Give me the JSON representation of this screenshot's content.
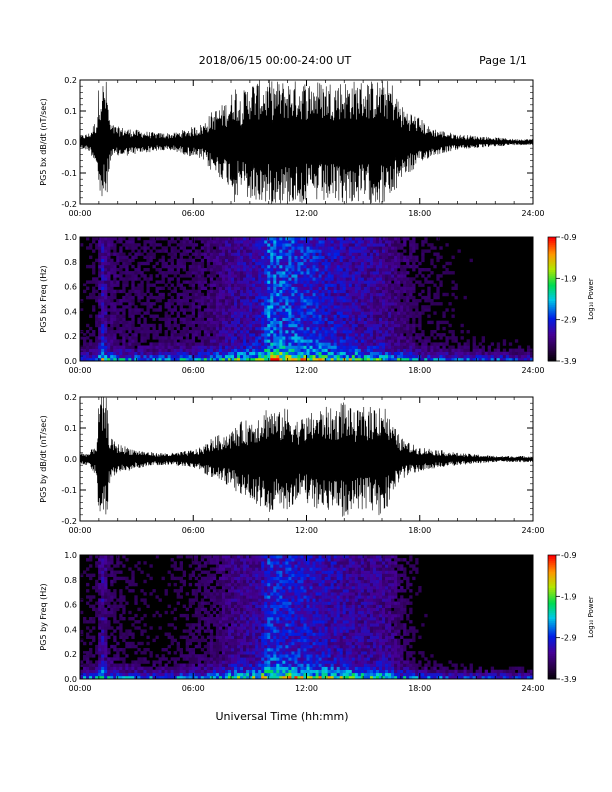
{
  "header": {
    "title": "2018/06/15  00:00-24:00 UT",
    "page": "Page 1/1"
  },
  "footer": {
    "xlabel": "Universal Time (hh:mm)"
  },
  "colorbar": {
    "ticks": [
      "-0.9",
      "-1.9",
      "-2.9",
      "-3.9"
    ],
    "label": "Log₁₀ Power"
  },
  "chart_data": [
    {
      "type": "line",
      "ylabel": "PG5 bx dB/dt (nT/sec)",
      "ylim": [
        -0.2,
        0.2
      ],
      "yticks": [
        "0.2",
        "0.1",
        "0.0",
        "-0.1",
        "-0.2"
      ],
      "xticks": [
        "00:00",
        "06:00",
        "12:00",
        "18:00",
        "24:00"
      ],
      "xlim_hours": [
        0,
        24
      ],
      "envelope": {
        "hours": [
          0,
          0.5,
          0.9,
          1.0,
          1.2,
          1.4,
          1.6,
          2.0,
          3.0,
          4.0,
          5.0,
          6.0,
          6.5,
          7.0,
          7.5,
          8.0,
          8.2,
          8.5,
          9.0,
          9.5,
          10.0,
          10.5,
          11.0,
          11.5,
          12.0,
          12.5,
          13.0,
          13.5,
          14.0,
          14.5,
          15.0,
          15.5,
          16.0,
          16.5,
          17.0,
          17.5,
          18.0,
          18.5,
          19.0,
          20.0,
          21.0,
          22.0,
          23.0,
          24.0
        ],
        "amplitude": [
          0.02,
          0.03,
          0.08,
          0.2,
          0.2,
          0.2,
          0.06,
          0.05,
          0.04,
          0.03,
          0.03,
          0.05,
          0.06,
          0.1,
          0.12,
          0.15,
          0.2,
          0.15,
          0.2,
          0.2,
          0.2,
          0.2,
          0.2,
          0.2,
          0.2,
          0.2,
          0.2,
          0.2,
          0.2,
          0.2,
          0.2,
          0.2,
          0.2,
          0.2,
          0.12,
          0.1,
          0.08,
          0.05,
          0.04,
          0.025,
          0.02,
          0.015,
          0.01,
          0.01
        ]
      }
    },
    {
      "type": "heatmap",
      "ylabel": "PG5 bx Freq (Hz)",
      "ylim": [
        0,
        1
      ],
      "yticks": [
        "1.0",
        "0.8",
        "0.6",
        "0.4",
        "0.2",
        "0.0"
      ],
      "xticks": [
        "00:00",
        "06:00",
        "12:00",
        "18:00",
        "24:00"
      ],
      "zlim": [
        -3.9,
        -0.9
      ],
      "activity": {
        "hours": [
          0,
          1,
          1.1,
          1.5,
          2,
          4,
          6,
          7,
          8,
          9,
          9.5,
          10,
          11,
          12,
          13,
          14,
          15,
          16,
          16.5,
          17,
          18,
          20,
          24
        ],
        "level": [
          0.2,
          0.25,
          0.6,
          0.35,
          0.3,
          0.25,
          0.3,
          0.35,
          0.45,
          0.5,
          0.55,
          0.8,
          0.75,
          0.7,
          0.6,
          0.55,
          0.5,
          0.45,
          0.4,
          0.35,
          0.25,
          0.2,
          0.15
        ]
      }
    },
    {
      "type": "line",
      "ylabel": "PG5 by dB/dt (nT/sec)",
      "ylim": [
        -0.2,
        0.2
      ],
      "yticks": [
        "0.2",
        "0.1",
        "0.0",
        "-0.1",
        "-0.2"
      ],
      "xticks": [
        "00:00",
        "06:00",
        "12:00",
        "18:00",
        "24:00"
      ],
      "xlim_hours": [
        0,
        24
      ],
      "envelope": {
        "hours": [
          0,
          0.5,
          0.9,
          1.0,
          1.2,
          1.4,
          1.6,
          2.0,
          3.0,
          4.0,
          5.0,
          6.0,
          6.5,
          7.0,
          7.5,
          8.0,
          8.5,
          9.0,
          9.5,
          10.0,
          10.5,
          11.0,
          11.5,
          12.0,
          12.5,
          13.0,
          13.5,
          14.0,
          14.5,
          15.0,
          15.5,
          16.0,
          16.5,
          17.0,
          17.5,
          18.0,
          19.0,
          20.0,
          21.0,
          22.0,
          23.0,
          24.0
        ],
        "amplitude": [
          0.02,
          0.02,
          0.06,
          0.2,
          0.2,
          0.2,
          0.07,
          0.05,
          0.03,
          0.02,
          0.02,
          0.03,
          0.04,
          0.07,
          0.08,
          0.09,
          0.12,
          0.13,
          0.15,
          0.18,
          0.15,
          0.17,
          0.13,
          0.14,
          0.16,
          0.17,
          0.16,
          0.2,
          0.15,
          0.17,
          0.17,
          0.2,
          0.12,
          0.07,
          0.05,
          0.04,
          0.03,
          0.02,
          0.015,
          0.01,
          0.01,
          0.01
        ]
      }
    },
    {
      "type": "heatmap",
      "ylabel": "PG5 by Freq (Hz)",
      "ylim": [
        0,
        1
      ],
      "yticks": [
        "1.0",
        "0.8",
        "0.6",
        "0.4",
        "0.2",
        "0.0"
      ],
      "xticks": [
        "00:00",
        "06:00",
        "12:00",
        "18:00",
        "24:00"
      ],
      "zlim": [
        -3.9,
        -0.9
      ],
      "activity": {
        "hours": [
          0,
          1,
          1.1,
          1.5,
          2,
          4,
          6,
          7,
          8,
          9,
          9.5,
          10,
          11,
          12,
          13,
          14,
          15,
          16,
          16.5,
          17,
          18,
          20,
          24
        ],
        "level": [
          0.2,
          0.25,
          0.55,
          0.3,
          0.25,
          0.2,
          0.25,
          0.3,
          0.4,
          0.45,
          0.5,
          0.7,
          0.65,
          0.6,
          0.55,
          0.5,
          0.45,
          0.45,
          0.4,
          0.3,
          0.2,
          0.15,
          0.12
        ]
      }
    }
  ]
}
